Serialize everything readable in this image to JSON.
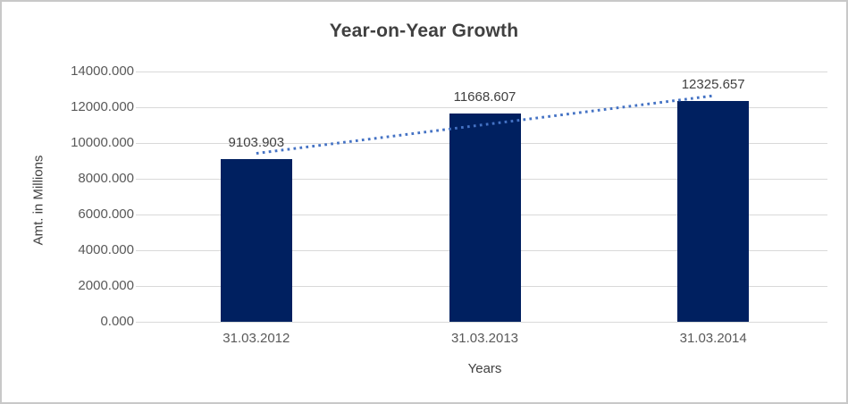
{
  "chart_data": {
    "type": "bar",
    "title": "Year-on-Year Growth",
    "xlabel": "Years",
    "ylabel": "Amt. in Millions",
    "categories": [
      "31.03.2012",
      "31.03.2013",
      "31.03.2014"
    ],
    "values": [
      9103.903,
      11668.607,
      12325.657
    ],
    "value_labels": [
      "9103.903",
      "11668.607",
      "12325.657"
    ],
    "ylim": [
      0,
      14000
    ],
    "ytick_step": 2000,
    "ytick_labels": [
      "0.000",
      "2000.000",
      "4000.000",
      "6000.000",
      "8000.000",
      "10000.000",
      "12000.000",
      "14000.000"
    ],
    "grid": true,
    "legend": "none",
    "trendline": {
      "type": "linear",
      "style": "dotted"
    },
    "colors": {
      "bar": "#002060",
      "trend": "#4472c4",
      "gridline": "#d9d9d9",
      "axis_line": "#d9d9d9",
      "title_text": "#404040",
      "tick_text": "#595959",
      "border": "#c8c8c8"
    }
  }
}
